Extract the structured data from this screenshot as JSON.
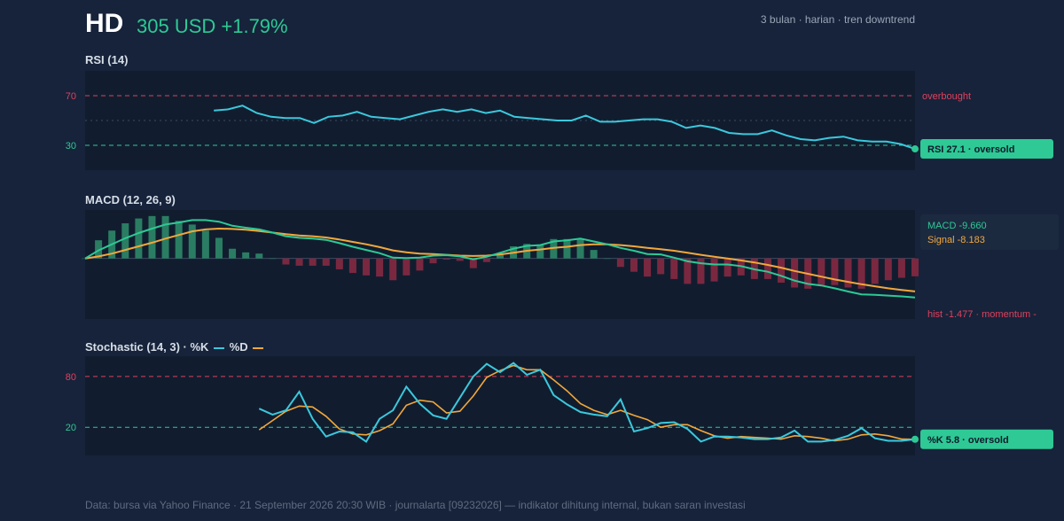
{
  "header": {
    "ticker": "HD",
    "price_text": "305 USD +1.79%",
    "context": "3 bulan · harian · tren downtrend"
  },
  "colors": {
    "background": "#16233a",
    "panel": "#111d2f",
    "rsi_line": "#3cc8dc",
    "macd_line": "#2ec995",
    "signal_line": "#f2a73b",
    "overbought": "#e0405e",
    "oversold": "#2ec995",
    "hist_positive": "#2a7d62",
    "hist_negative": "#7a2840"
  },
  "chart_data": [
    {
      "type": "line",
      "title": "RSI (14)",
      "ylim": [
        10,
        90
      ],
      "yticks": [
        30,
        70
      ],
      "grid": false,
      "start_index": 9,
      "thresholds": {
        "overbought": 70,
        "mid": 50,
        "oversold": 30
      },
      "overbought_label": "overbought",
      "series": [
        {
          "values": [
            58,
            59,
            62,
            56,
            53,
            52,
            52,
            48,
            53,
            54,
            57,
            53,
            52,
            51,
            54,
            57,
            59,
            57,
            59,
            56,
            58,
            53,
            52,
            51,
            50,
            50,
            54,
            49,
            49,
            50,
            51,
            51,
            49,
            44,
            46,
            44,
            40,
            39,
            39,
            42,
            38,
            35,
            34,
            36,
            37,
            34,
            33,
            33,
            31,
            27.1
          ]
        }
      ],
      "current_label": "RSI 27.1 · oversold"
    },
    {
      "type": "line",
      "title": "MACD (12, 26, 9)",
      "ylim": [
        -15,
        12
      ],
      "series": [
        {
          "name": "MACD",
          "values": [
            0,
            2,
            3.5,
            5,
            6.3,
            7.4,
            8.4,
            8.9,
            9.5,
            9.5,
            9.1,
            8.1,
            7.6,
            7.2,
            6.4,
            5.5,
            5.1,
            4.9,
            4.6,
            3.8,
            2.9,
            2.1,
            1.3,
            0.2,
            0.1,
            0.2,
            0.7,
            0.8,
            0.5,
            -0.2,
            0.4,
            1.4,
            2.4,
            3.1,
            3.3,
            4.2,
            4.5,
            4.9,
            4.2,
            3.5,
            2.6,
            1.9,
            1.1,
            1.0,
            0.2,
            -0.7,
            -1.2,
            -1.5,
            -1.5,
            -1.9,
            -2.7,
            -3.3,
            -4.3,
            -5.5,
            -6.3,
            -6.7,
            -7.4,
            -8.2,
            -8.9,
            -9.0,
            -9.2,
            -9.4,
            -9.66
          ]
        },
        {
          "name": "Signal",
          "values": [
            0,
            0.5,
            1.2,
            2.1,
            3.0,
            3.9,
            4.9,
            5.8,
            6.7,
            7.2,
            7.4,
            7.3,
            7.1,
            6.8,
            6.4,
            6.0,
            5.7,
            5.5,
            5.2,
            4.7,
            4.1,
            3.5,
            2.8,
            2.0,
            1.5,
            1.2,
            1.1,
            0.9,
            0.7,
            0.6,
            0.7,
            1.0,
            1.4,
            1.9,
            2.2,
            2.6,
            2.9,
            3.3,
            3.5,
            3.5,
            3.3,
            3.0,
            2.6,
            2.3,
            1.9,
            1.4,
            0.9,
            0.4,
            0.0,
            -0.5,
            -1.0,
            -1.6,
            -2.3,
            -3.1,
            -3.8,
            -4.5,
            -5.2,
            -5.8,
            -6.4,
            -6.9,
            -7.4,
            -7.8,
            -8.183
          ]
        }
      ],
      "histogram": [
        0,
        1.5,
        2.3,
        2.9,
        3.3,
        3.5,
        3.5,
        3.1,
        2.8,
        2.3,
        1.7,
        0.8,
        0.5,
        0.4,
        0,
        -0.5,
        -0.6,
        -0.6,
        -0.6,
        -0.9,
        -1.2,
        -1.4,
        -1.5,
        -1.8,
        -1.4,
        -1.0,
        -0.4,
        -0.1,
        -0.2,
        -0.8,
        -0.3,
        0.4,
        1.0,
        1.2,
        1.1,
        1.6,
        1.6,
        1.6,
        0.7,
        0,
        -0.7,
        -1.1,
        -1.5,
        -1.3,
        -1.7,
        -2.1,
        -2.1,
        -1.9,
        -1.5,
        -1.4,
        -1.7,
        -1.7,
        -2.0,
        -2.4,
        -2.5,
        -2.2,
        -2.2,
        -2.4,
        -2.5,
        -2.1,
        -1.8,
        -1.6,
        -1.477
      ],
      "macd_label": "MACD -9.660",
      "signal_label": "Signal -8.183",
      "hist_label": "hist -1.477 · momentum -"
    },
    {
      "type": "line",
      "title": "Stochastic (14, 3) · %K",
      "legend_k": "%K",
      "legend_d": "%D",
      "ylim": [
        0,
        100
      ],
      "yticks": [
        20,
        80
      ],
      "thresholds": {
        "overbought": 80,
        "oversold": 20
      },
      "start_index": 13,
      "series": [
        {
          "name": "%K",
          "values": [
            42,
            35,
            40,
            62,
            30,
            9,
            15,
            14,
            3,
            30,
            40,
            68,
            48,
            34,
            30,
            55,
            80,
            95,
            85,
            96,
            82,
            88,
            58,
            47,
            38,
            35,
            33,
            53,
            15,
            19,
            25,
            26,
            18,
            3,
            9,
            9,
            8,
            6,
            6,
            8,
            16,
            3,
            3,
            5,
            10,
            19,
            7,
            4,
            4,
            5.8
          ]
        },
        {
          "name": "%D",
          "values": [
            17,
            28,
            39,
            45,
            44,
            33,
            18,
            12,
            11,
            16,
            24,
            46,
            52,
            50,
            37,
            39,
            57,
            79,
            87,
            93,
            88,
            88,
            76,
            63,
            48,
            40,
            35,
            40,
            34,
            29,
            20,
            23,
            23,
            16,
            10,
            7,
            9,
            8,
            7,
            6,
            10,
            9,
            7,
            4,
            6,
            11,
            12,
            10,
            6,
            5.8
          ]
        }
      ],
      "current_label": "%K 5.8 · oversold"
    }
  ],
  "footer": "Data: bursa via Yahoo Finance · 21 September 2026 20:30 WIB · journalarta [09232026] — indikator dihitung internal, bukan saran investasi"
}
